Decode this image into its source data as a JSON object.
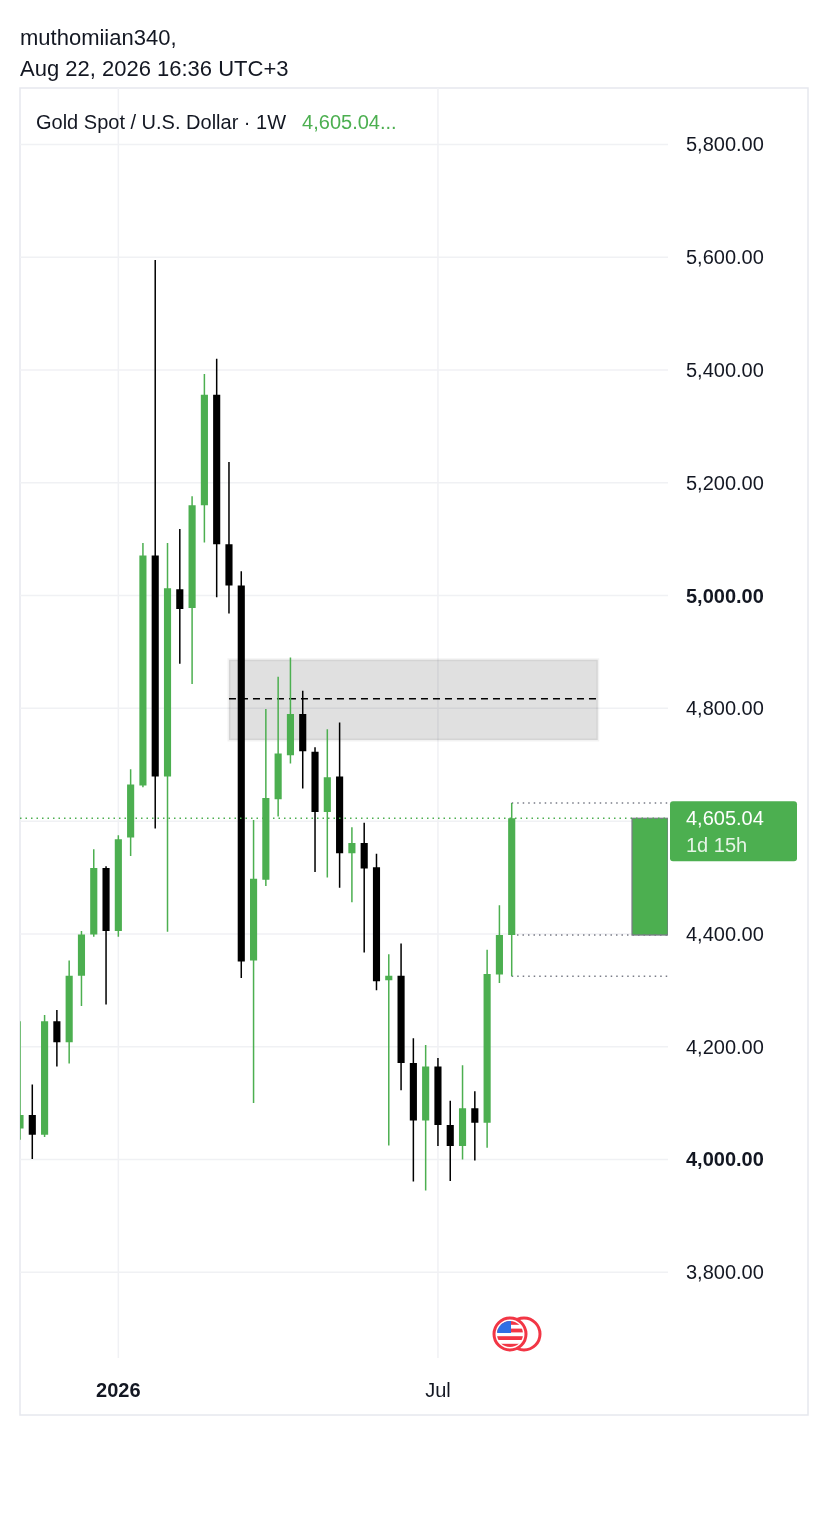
{
  "chart_data": {
    "type": "candlestick",
    "title": "Gold Spot / U.S. Dollar · 1W",
    "subtitle": "4,605.04...",
    "annotations": [
      "muthomiian340,",
      "Aug 22, 2026 16:36 UTC+3",
      "1d 15h"
    ],
    "x": [
      "2025-11-10",
      "2025-11-17",
      "2025-11-24",
      "2025-12-01",
      "2025-12-08",
      "2025-12-15",
      "2025-12-22",
      "2025-12-29",
      "2026-01-05",
      "2026-01-12",
      "2026-01-19",
      "2026-01-26",
      "2026-02-02",
      "2026-02-09",
      "2026-02-16",
      "2026-02-23",
      "2026-03-02",
      "2026-03-09",
      "2026-03-16",
      "2026-03-23",
      "2026-03-30",
      "2026-04-06",
      "2026-04-13",
      "2026-04-20",
      "2026-04-27",
      "2026-05-04",
      "2026-05-11",
      "2026-05-18",
      "2026-05-25",
      "2026-06-01",
      "2026-06-08",
      "2026-06-15",
      "2026-06-22",
      "2026-06-29",
      "2026-07-06",
      "2026-07-13",
      "2026-07-20",
      "2026-07-27",
      "2026-08-03",
      "2026-08-10",
      "2026-08-17"
    ],
    "ohlc": [
      [
        4055,
        4245,
        4035,
        4079
      ],
      [
        4079,
        4133,
        4001,
        4044
      ],
      [
        4044,
        4256,
        4040,
        4245
      ],
      [
        4245,
        4265,
        4165,
        4208
      ],
      [
        4208,
        4353,
        4170,
        4326
      ],
      [
        4326,
        4405,
        4272,
        4399
      ],
      [
        4399,
        4550,
        4395,
        4517
      ],
      [
        4517,
        4520,
        4275,
        4405
      ],
      [
        4405,
        4575,
        4395,
        4568
      ],
      [
        4571,
        4692,
        4538,
        4665
      ],
      [
        4663,
        5093,
        4660,
        5071
      ],
      [
        5071,
        5595,
        4587,
        4679
      ],
      [
        4679,
        5093,
        4404,
        5013
      ],
      [
        5011,
        5118,
        4879,
        4976
      ],
      [
        4978,
        5176,
        4843,
        5160
      ],
      [
        5160,
        5393,
        5094,
        5356
      ],
      [
        5356,
        5420,
        4997,
        5091
      ],
      [
        5091,
        5237,
        4968,
        5018
      ],
      [
        5018,
        5043,
        4322,
        4351
      ],
      [
        4353,
        4602,
        4100,
        4498
      ],
      [
        4496,
        4799,
        4485,
        4641
      ],
      [
        4639,
        4856,
        4608,
        4720
      ],
      [
        4717,
        4890,
        4702,
        4790
      ],
      [
        4790,
        4831,
        4658,
        4724
      ],
      [
        4723,
        4731,
        4510,
        4616
      ],
      [
        4616,
        4763,
        4500,
        4678
      ],
      [
        4679,
        4775,
        4482,
        4543
      ],
      [
        4543,
        4589,
        4456,
        4561
      ],
      [
        4561,
        4597,
        4367,
        4516
      ],
      [
        4518,
        4542,
        4300,
        4316
      ],
      [
        4318,
        4364,
        4025,
        4326
      ],
      [
        4326,
        4383,
        4123,
        4171
      ],
      [
        4171,
        4215,
        3961,
        4069
      ],
      [
        4069,
        4203,
        3945,
        4165
      ],
      [
        4165,
        4180,
        4024,
        4061
      ],
      [
        4061,
        4104,
        3962,
        4024
      ],
      [
        4024,
        4167,
        4000,
        4091
      ],
      [
        4091,
        4121,
        3998,
        4065
      ],
      [
        4065,
        4372,
        4021,
        4329
      ],
      [
        4328,
        4451,
        4313,
        4398
      ],
      [
        4398,
        4632,
        4325,
        4605.04
      ]
    ],
    "colors": [
      "#4caf50",
      "#000000",
      "#4caf50",
      "#000000",
      "#4caf50",
      "#4caf50",
      "#4caf50",
      "#000000",
      "#4caf50",
      "#4caf50",
      "#4caf50",
      "#000000",
      "#4caf50",
      "#000000",
      "#4caf50",
      "#4caf50",
      "#000000",
      "#000000",
      "#000000",
      "#4caf50",
      "#4caf50",
      "#4caf50",
      "#4caf50",
      "#000000",
      "#000000",
      "#4caf50",
      "#000000",
      "#4caf50",
      "#000000",
      "#000000",
      "#4caf50",
      "#000000",
      "#000000",
      "#4caf50",
      "#000000",
      "#000000",
      "#4caf50",
      "#000000",
      "#4caf50",
      "#4caf50",
      "#4caf50"
    ],
    "series": [
      {
        "type": "line",
        "x": [
          "2026-03-09",
          "2026-10-05"
        ],
        "values": [
          4817,
          4817
        ],
        "lower": [
          4744,
          4744
        ],
        "upper": [
          4886,
          4886
        ],
        "color": "#000000",
        "line_style": "dashed"
      },
      {
        "type": "line",
        "x": [
          "2026-08-17",
          "2026-11-14"
        ],
        "values": [
          4632,
          4632
        ],
        "color": "#787b86",
        "line_style": "dotted"
      },
      {
        "type": "line",
        "x": [
          "2026-08-20",
          "2026-11-14"
        ],
        "values": [
          4398,
          4398
        ],
        "color": "#787b86",
        "line_style": "dotted"
      },
      {
        "type": "line",
        "x": [
          "2026-08-17",
          "2026-11-14"
        ],
        "values": [
          4325,
          4325
        ],
        "color": "#787b86",
        "line_style": "dotted"
      }
    ],
    "xlim": [
      "2025-11-10",
      "2026-11-14"
    ],
    "xticks": [
      {
        "value": "2026-01-05",
        "label": "2026"
      },
      {
        "value": "2026-07-06",
        "label": "Jul"
      }
    ],
    "ylim": [
      3648,
      5900
    ],
    "yticks": [
      {
        "value": 3800,
        "label": "3,800.00"
      },
      {
        "value": 4000,
        "label": "4,000.00"
      },
      {
        "value": 4200,
        "label": "4,200.00"
      },
      {
        "value": 4400,
        "label": "4,400.00"
      },
      {
        "value": 4600,
        "label": null
      },
      {
        "value": 4800,
        "label": "4,800.00"
      },
      {
        "value": 5000,
        "label": "5,000.00"
      },
      {
        "value": 5200,
        "label": "5,200.00"
      },
      {
        "value": 5400,
        "label": "5,400.00"
      },
      {
        "value": 5600,
        "label": "5,600.00"
      },
      {
        "value": 5800,
        "label": "5,800.00"
      }
    ],
    "grid": true,
    "ref_lines": [
      {
        "axis": "y",
        "value": 4605.04,
        "label": "4,605.04",
        "color": "#4caf50",
        "line_style": "dotted"
      }
    ],
    "bands": [
      {
        "axis": "y",
        "from": 4398,
        "to": 4605.04,
        "color": "#4caf50"
      }
    ]
  }
}
